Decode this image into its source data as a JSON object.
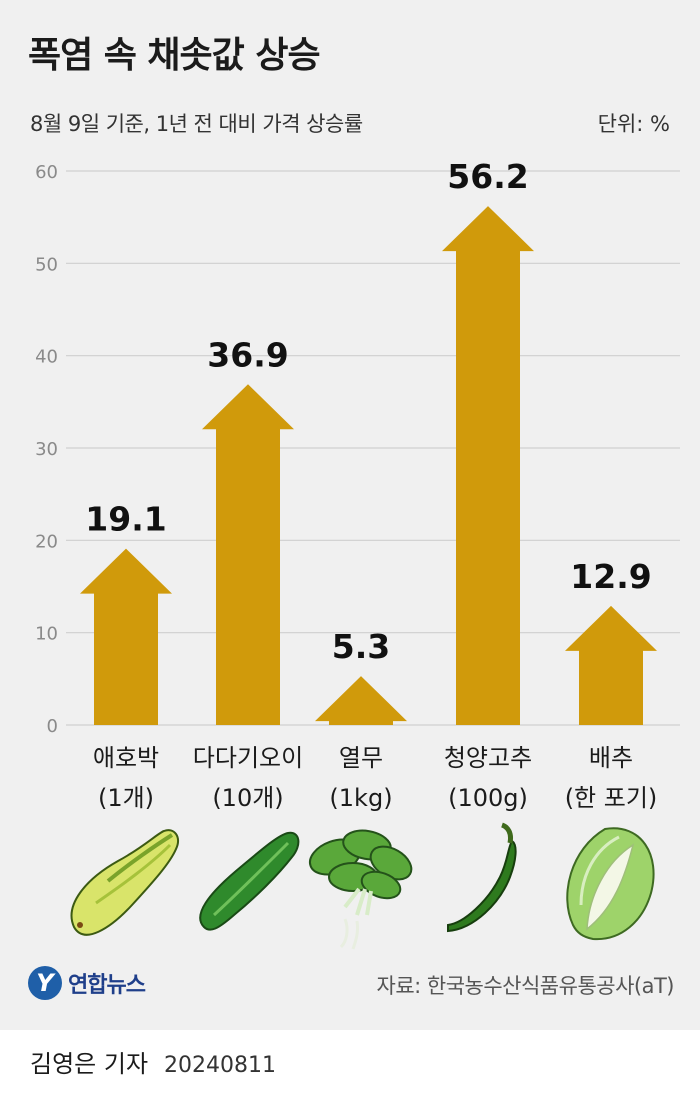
{
  "title": "폭염 속 채솟값 상승",
  "subtitle": "8월 9일 기준, 1년 전 대비 가격 상승률",
  "unit_label": "단위: %",
  "source": "자료: 한국농수산식품유통공사(aT)",
  "logo": {
    "mark": "Y",
    "text": "연합뉴스"
  },
  "footer": {
    "reporter": "김영은 기자",
    "date": "20240811"
  },
  "colors": {
    "bar": "#d09a0b",
    "grid": "#cfcfcf",
    "axis_text": "#8a8a8a"
  },
  "chart_data": {
    "type": "bar",
    "title": "폭염 속 채솟값 상승",
    "subtitle": "8월 9일 기준, 1년 전 대비 가격 상승률",
    "categories": [
      [
        "애호박",
        "(1개)"
      ],
      [
        "다다기오이",
        "(10개)"
      ],
      [
        "열무",
        "(1kg)"
      ],
      [
        "청양고추",
        "(100g)"
      ],
      [
        "배추",
        "(한 포기)"
      ]
    ],
    "values": [
      19.1,
      36.9,
      5.3,
      56.2,
      12.9
    ],
    "value_labels": [
      "19.1",
      "36.9",
      "5.3",
      "56.2",
      "12.9"
    ],
    "ylim": [
      0,
      60
    ],
    "yticks": [
      0,
      10,
      20,
      30,
      40,
      50,
      60
    ],
    "grid": true,
    "icons": [
      "zucchini-icon",
      "cucumber-icon",
      "young-radish-icon",
      "cheongyang-pepper-icon",
      "napa-cabbage-icon"
    ]
  }
}
